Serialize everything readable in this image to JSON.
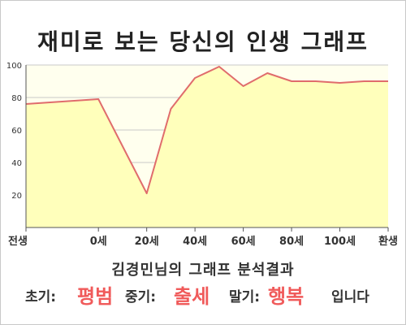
{
  "title": "재미로 보는 당신의 인생 그래프",
  "chart_data": {
    "type": "area",
    "x_ticks": [
      "전생",
      "0세",
      "20세",
      "40세",
      "60세",
      "80세",
      "100세",
      "환생"
    ],
    "y_ticks": [
      "20",
      "40",
      "60",
      "80",
      "100"
    ],
    "ylim": [
      0,
      100
    ],
    "x": [
      -30,
      0,
      20,
      30,
      40,
      50,
      60,
      70,
      80,
      90,
      100,
      110,
      120
    ],
    "values": [
      76,
      79,
      21,
      73,
      92,
      99,
      87,
      95,
      90,
      90,
      89,
      90,
      90
    ],
    "grid": true,
    "colors": {
      "line": "#e06c6c",
      "fill": "#ffffbb",
      "plot_bg": "#ffffee",
      "grid": "#c8c8c8",
      "axis": "#555555"
    }
  },
  "summary": {
    "title": "김경민님의 그래프 분석결과",
    "early_label": "초기:",
    "early_value": "평범",
    "middle_label": "중기:",
    "middle_value": "출세",
    "late_label": "말기:",
    "late_value": "행복",
    "closing": "입니다"
  }
}
